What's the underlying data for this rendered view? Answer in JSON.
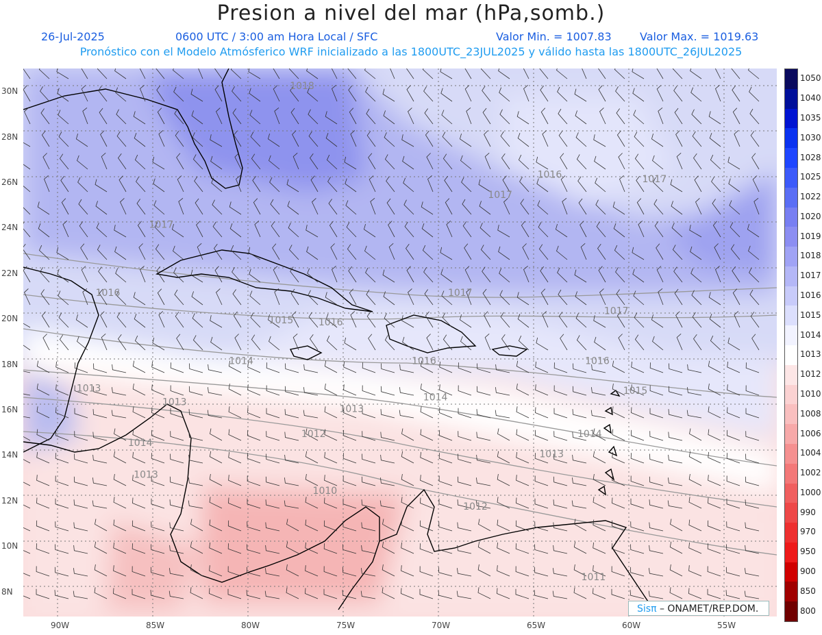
{
  "header": {
    "title": "Presion a nivel del mar (hPa,somb.)",
    "date": "26-Jul-2025",
    "time": "0600 UTC / 3:00 am Hora Local / SFC",
    "min": "Valor Min. = 1007.83",
    "max": "Valor Max. = 1019.63",
    "forecast": "Pronóstico con el Modelo Atmósferico WRF inicializado a las 1800UTC_23JUL2025 y válido hasta las  1800UTC_26JUL2025"
  },
  "axes": {
    "lat_labels": [
      "30N",
      "28N",
      "26N",
      "24N",
      "22N",
      "20N",
      "18N",
      "16N",
      "14N",
      "12N",
      "10N",
      "8N"
    ],
    "lon_labels": [
      "90W",
      "85W",
      "80W",
      "75W",
      "70W",
      "65W",
      "60W",
      "55W"
    ]
  },
  "isobar_labels": [
    {
      "text": "1018",
      "lon": -77.8,
      "lat": 30.1
    },
    {
      "text": "1016",
      "lon": -64.8,
      "lat": 26.2
    },
    {
      "text": "1017",
      "lon": -59.3,
      "lat": 26.0
    },
    {
      "text": "1017",
      "lon": -67.4,
      "lat": 25.3
    },
    {
      "text": "1017",
      "lon": -85.2,
      "lat": 24.0
    },
    {
      "text": "1016",
      "lon": -88.0,
      "lat": 21.0
    },
    {
      "text": "1017",
      "lon": -69.5,
      "lat": 21.0
    },
    {
      "text": "1017",
      "lon": -61.3,
      "lat": 20.2
    },
    {
      "text": "1015",
      "lon": -78.9,
      "lat": 19.8
    },
    {
      "text": "1016",
      "lon": -76.3,
      "lat": 19.7
    },
    {
      "text": "1014",
      "lon": -81.0,
      "lat": 18.0
    },
    {
      "text": "1016",
      "lon": -71.4,
      "lat": 18.0
    },
    {
      "text": "1016",
      "lon": -62.3,
      "lat": 18.0
    },
    {
      "text": "1013",
      "lon": -89.0,
      "lat": 16.8
    },
    {
      "text": "1015",
      "lon": -60.3,
      "lat": 16.7
    },
    {
      "text": "1013",
      "lon": -84.5,
      "lat": 16.2
    },
    {
      "text": "1014",
      "lon": -70.8,
      "lat": 16.4
    },
    {
      "text": "1013",
      "lon": -75.2,
      "lat": 15.9
    },
    {
      "text": "1012",
      "lon": -77.2,
      "lat": 14.8
    },
    {
      "text": "1014",
      "lon": -62.7,
      "lat": 14.8
    },
    {
      "text": "1014",
      "lon": -86.3,
      "lat": 14.4
    },
    {
      "text": "1013",
      "lon": -64.7,
      "lat": 13.9
    },
    {
      "text": "1013",
      "lon": -86.0,
      "lat": 13.0
    },
    {
      "text": "1010",
      "lon": -76.6,
      "lat": 12.3
    },
    {
      "text": "1012",
      "lon": -68.7,
      "lat": 11.6
    },
    {
      "text": "1011",
      "lon": -62.5,
      "lat": 8.5
    }
  ],
  "colorbar": {
    "labels": [
      "1050",
      "1040",
      "1035",
      "1030",
      "1028",
      "1025",
      "1022",
      "1020",
      "1019",
      "1018",
      "1017",
      "1016",
      "1015",
      "1014",
      "1013",
      "1012",
      "1010",
      "1008",
      "1006",
      "1004",
      "1002",
      "1000",
      "990",
      "970",
      "950",
      "900",
      "850",
      "800"
    ],
    "colors": [
      "#0a0a5e",
      "#000f9a",
      "#0014d2",
      "#0a32f0",
      "#1e46ff",
      "#3c5afa",
      "#5a6ef5",
      "#787ff2",
      "#8c8ef2",
      "#a0a3f5",
      "#b4b7f7",
      "#c8cbfa",
      "#dcdffd",
      "#f2f3ff",
      "#ffffff",
      "#fde6e6",
      "#fbd2d2",
      "#f9bfbf",
      "#f7a9a9",
      "#f59090",
      "#f37878",
      "#f05f5f",
      "#ee4848",
      "#ee3030",
      "#ee1a1a",
      "#d00000",
      "#a00000",
      "#700000"
    ]
  },
  "credit": {
    "brand": "Sisπ",
    "text": "– ONAMET/REP.DOM."
  }
}
